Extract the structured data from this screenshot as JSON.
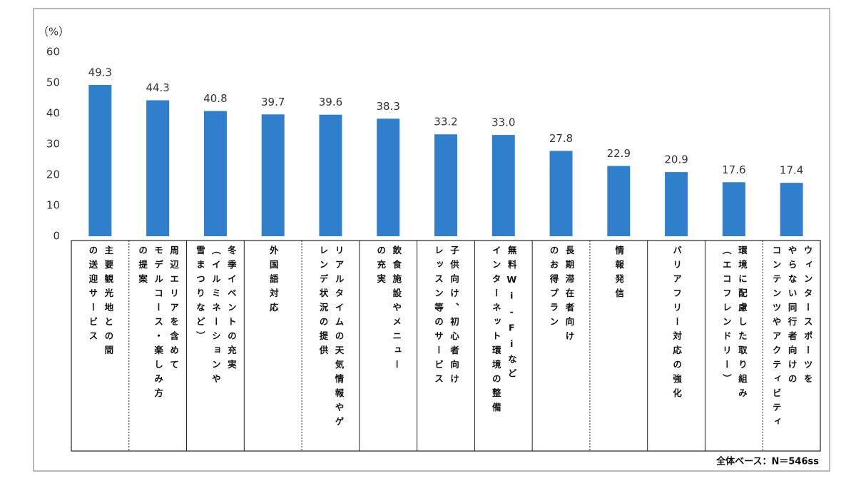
{
  "chart_data": {
    "type": "bar",
    "y_unit": "（%）",
    "categories": [
      "主要観光地との間\nの送迎サービス",
      "周辺エリアを含めて\nモデルコース・楽しみ方\nの提案",
      "冬季イベントの充実\n（イルミネーションや\n雪まつりなど）",
      "外国語対応",
      "リアルタイムの天気情報やゲ\nレンデ状況の提供",
      "飲食施設やメニュー\nの充実",
      "子供向け、初心者向け\nレッスン等のサービス",
      "無料Wi-Fiなど\nインターネット環境の整備",
      "長期滞在者向け\nのお得プラン",
      "情報発信",
      "バリアフリー対応の強化",
      "環境に配慮した取り組み\n（エコフレンドリー）",
      "ウィンタースポーツを\nやらない同行者向けの\nコンテンツやアクティビティ"
    ],
    "values": [
      49.3,
      44.3,
      40.8,
      39.7,
      39.6,
      38.3,
      33.2,
      33.0,
      27.8,
      22.9,
      20.9,
      17.6,
      17.4
    ],
    "value_labels": [
      "49.3",
      "44.3",
      "40.8",
      "39.7",
      "39.6",
      "38.3",
      "33.2",
      "33.0",
      "27.8",
      "22.9",
      "20.9",
      "17.6",
      "17.4"
    ],
    "color": "#2f7fcc",
    "ylim": [
      0,
      60
    ],
    "yticks": [
      0,
      10,
      20,
      30,
      40,
      50,
      60
    ],
    "grid": false,
    "footnote": "全体ベース：N＝546ss"
  }
}
